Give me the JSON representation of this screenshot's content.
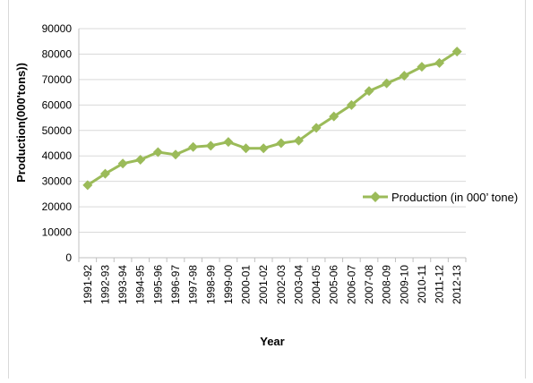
{
  "chart_data": {
    "type": "line",
    "title": "",
    "xlabel": "Year",
    "ylabel": "Production(000'tons))",
    "ylim": [
      0,
      90000
    ],
    "yticks": [
      0,
      10000,
      20000,
      30000,
      40000,
      50000,
      60000,
      70000,
      80000,
      90000
    ],
    "grid": true,
    "legend_position": "right",
    "categories": [
      "1991-92",
      "1992-93",
      "1993-94",
      "1994-95",
      "1995-96",
      "1996-97",
      "1997-98",
      "1998-99",
      "1999-00",
      "2000-01",
      "2001-02",
      "2002-03",
      "2003-04",
      "2004-05",
      "2005-06",
      "2006-07",
      "2007-08",
      "2008-09",
      "2009-10",
      "2010-11",
      "2011-12",
      "2012-13"
    ],
    "series": [
      {
        "name": "Production (in 000’ tone)",
        "color": "#9bbb59",
        "marker": "diamond",
        "values": [
          28500,
          33000,
          37000,
          38500,
          41500,
          40500,
          43500,
          44000,
          45500,
          43000,
          43000,
          45000,
          46000,
          51000,
          55500,
          60000,
          65500,
          68500,
          71500,
          75000,
          76500,
          81000
        ]
      }
    ]
  }
}
